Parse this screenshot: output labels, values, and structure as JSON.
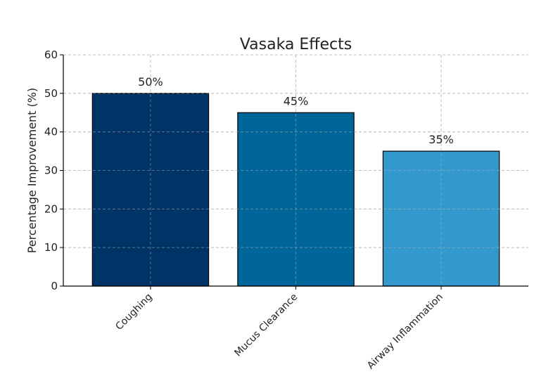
{
  "chart_data": {
    "type": "bar",
    "title": "Vasaka Effects",
    "xlabel": "",
    "ylabel": "Percentage Improvement (%)",
    "categories": [
      "Coughing",
      "Mucus Clearance",
      "Airway Inflammation"
    ],
    "values": [
      50,
      45,
      35
    ],
    "data_labels": [
      "50%",
      "45%",
      "35%"
    ],
    "colors": [
      "#003366",
      "#006699",
      "#3399cc"
    ],
    "ylim": [
      0,
      60
    ],
    "yticks": [
      0,
      10,
      20,
      30,
      40,
      50,
      60
    ],
    "grid": true
  }
}
